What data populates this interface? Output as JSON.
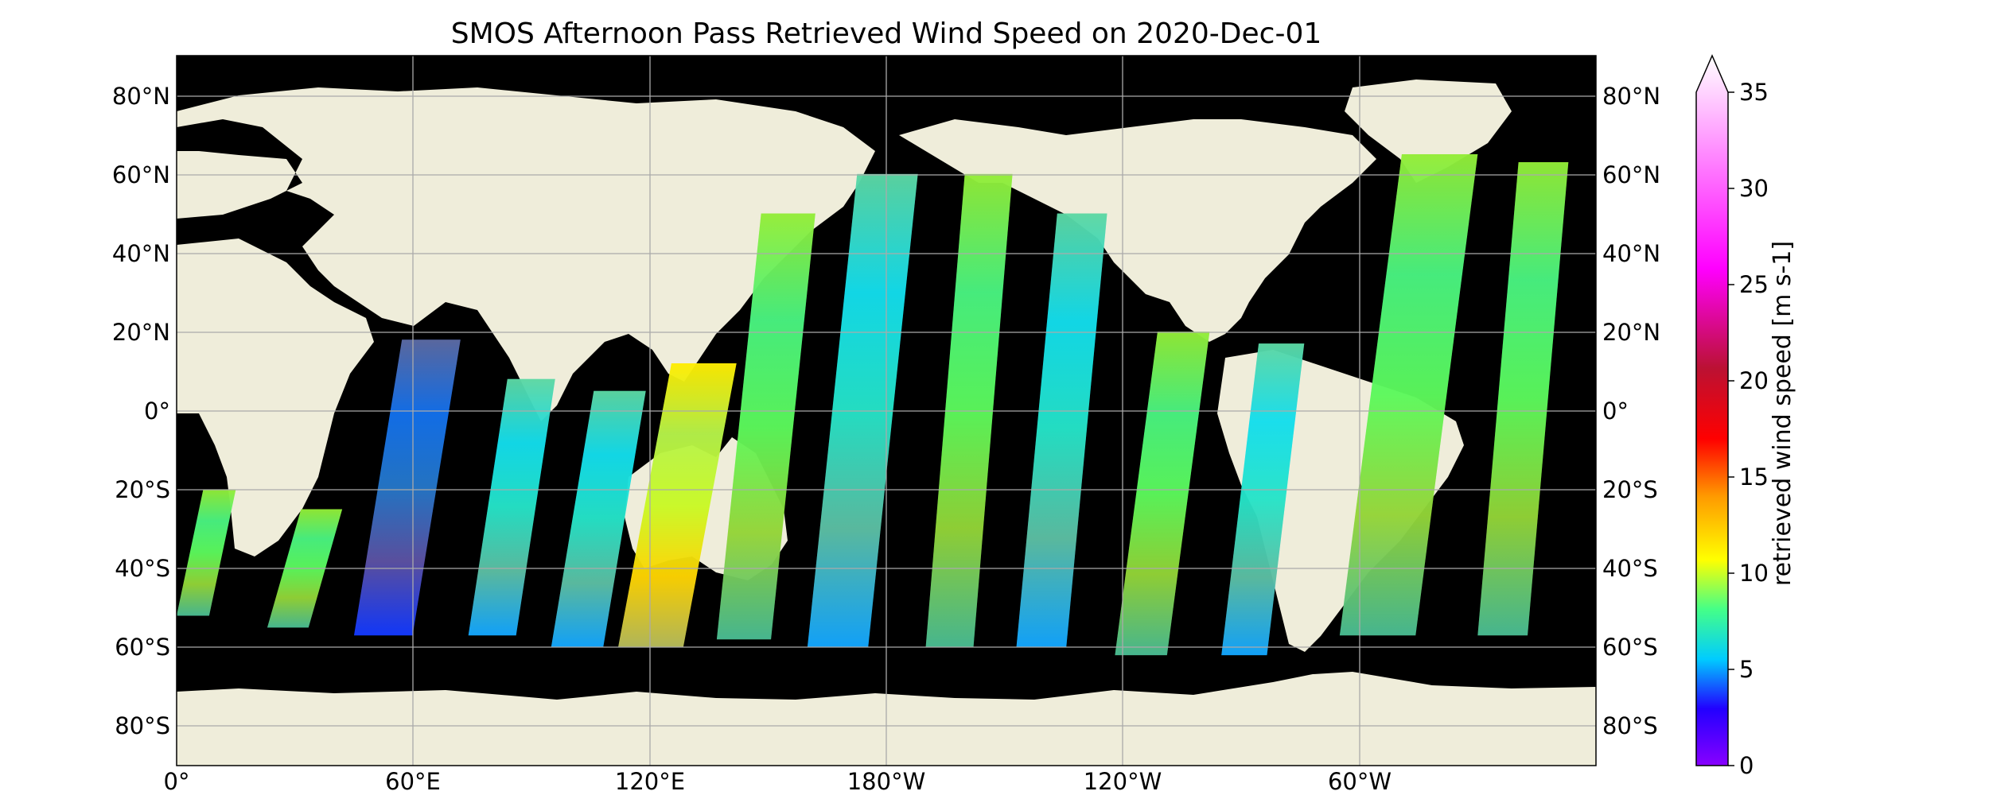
{
  "title": "SMOS Afternoon Pass Retrieved Wind Speed on 2020-Dec-01",
  "map": {
    "projection": "PlateCarree",
    "central_longitude": 0,
    "extent": {
      "lon": [
        0,
        360
      ],
      "lat": [
        -90,
        90
      ]
    },
    "ocean_no_data_color": "#000000",
    "land_color": "#efedda",
    "gridline_color": "#aaaaaa",
    "lat_ticks": [
      "80°N",
      "60°N",
      "40°N",
      "20°N",
      "0°",
      "20°S",
      "40°S",
      "60°S",
      "80°S"
    ],
    "lon_ticks": [
      "0°",
      "60°E",
      "120°E",
      "180°W",
      "120°W",
      "60°W"
    ]
  },
  "colorbar": {
    "label": "retrieved wind speed [m s-1]",
    "min": 0,
    "max": 35,
    "ticks": [
      "0",
      "5",
      "10",
      "15",
      "20",
      "25",
      "30",
      "35"
    ],
    "extend": "max",
    "colormap": [
      "#8800ff",
      "#0033ff",
      "#00ddff",
      "#55ff55",
      "#ffff00",
      "#ff8800",
      "#ff0000",
      "#cc1144",
      "#ff00ff",
      "#ffffff"
    ]
  },
  "swaths": [
    {
      "lon": [
        0,
        15
      ],
      "lat": [
        -52,
        -20
      ],
      "mean_speed": 12
    },
    {
      "lon": [
        23,
        42
      ],
      "lat": [
        -55,
        -25
      ],
      "mean_speed": 12
    },
    {
      "lon": [
        45,
        72
      ],
      "lat": [
        -57,
        18
      ],
      "mean_speed": 5
    },
    {
      "lon": [
        74,
        96
      ],
      "lat": [
        -57,
        8
      ],
      "mean_speed": 6
    },
    {
      "lon": [
        95,
        119
      ],
      "lat": [
        -60,
        5
      ],
      "mean_speed": 9
    },
    {
      "lon": [
        112,
        142
      ],
      "lat": [
        -60,
        12
      ],
      "mean_speed": 14
    },
    {
      "lon": [
        137,
        162
      ],
      "lat": [
        -58,
        50
      ],
      "mean_speed": 10
    },
    {
      "lon": [
        160,
        188
      ],
      "lat": [
        -60,
        60
      ],
      "mean_speed": 9
    },
    {
      "lon": [
        190,
        212
      ],
      "lat": [
        -60,
        60
      ],
      "mean_speed": 10
    },
    {
      "lon": [
        213,
        236
      ],
      "lat": [
        -60,
        50
      ],
      "mean_speed": 8
    },
    {
      "lon": [
        238,
        262
      ],
      "lat": [
        -62,
        20
      ],
      "mean_speed": 11
    },
    {
      "lon": [
        265,
        286
      ],
      "lat": [
        -62,
        17
      ],
      "mean_speed": 9
    },
    {
      "lon": [
        295,
        330
      ],
      "lat": [
        -57,
        65
      ],
      "mean_speed": 12
    },
    {
      "lon": [
        330,
        353
      ],
      "lat": [
        -57,
        63
      ],
      "mean_speed": 10
    }
  ]
}
